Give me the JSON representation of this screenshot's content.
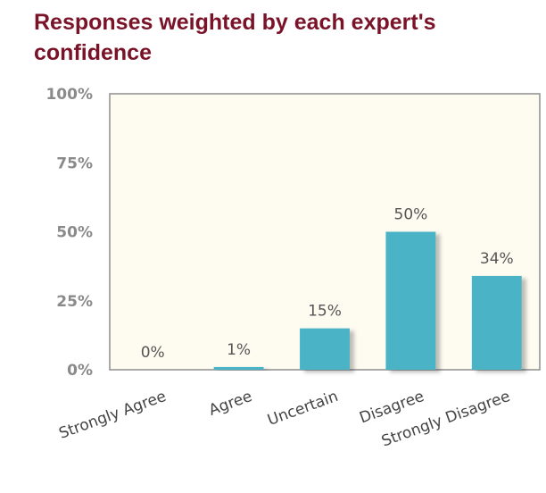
{
  "chart_data": {
    "type": "bar",
    "title": "Responses weighted by each expert's confidence",
    "categories": [
      "Strongly Agree",
      "Agree",
      "Uncertain",
      "Disagree",
      "Strongly Disagree"
    ],
    "values": [
      0,
      1,
      15,
      50,
      34
    ],
    "value_labels": [
      "0%",
      "1%",
      "15%",
      "50%",
      "34%"
    ],
    "yticks": [
      "0%",
      "25%",
      "50%",
      "75%",
      "100%"
    ],
    "ylim": [
      0,
      100
    ],
    "xlabel": "",
    "ylabel": "",
    "grid": false,
    "colors": {
      "bar": "#4cb3c6",
      "plot_bg": "#fefcf1",
      "frame": "#8e8e8e",
      "title": "#7a1228"
    }
  }
}
